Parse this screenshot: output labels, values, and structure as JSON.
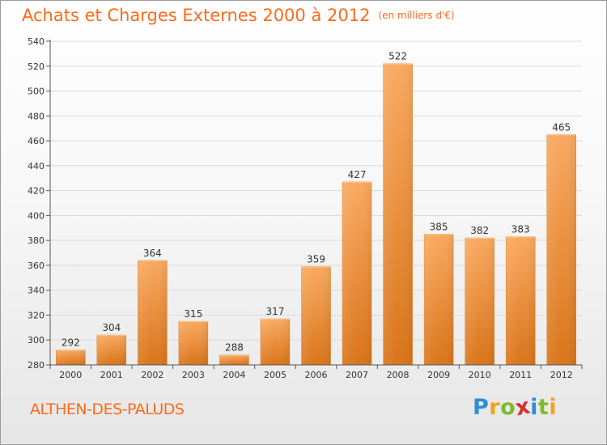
{
  "title": "Achats et Charges Externes 2000 à 2012",
  "unit": "(en milliers d'€)",
  "commune": "ALTHEN-DES-PALUDS",
  "logo": {
    "text": "Proxiti",
    "letters": [
      {
        "char": "P",
        "color": "#2d8fd6"
      },
      {
        "char": "r",
        "color": "#f2a31a"
      },
      {
        "char": "o",
        "color": "#7cbb2a"
      },
      {
        "char": "x",
        "color": "#d72f2f"
      },
      {
        "char": "i",
        "color": "#2d8fd6"
      },
      {
        "char": "t",
        "color": "#7cbb2a"
      },
      {
        "char": "i",
        "color": "#f2a31a"
      }
    ]
  },
  "colors": {
    "title": "#ff6a1a",
    "bar_light": "#f9a960",
    "bar_dark": "#d97419",
    "grid": "#d9d9d9",
    "axis": "#555555"
  },
  "chart_data": {
    "type": "bar",
    "title": "Achats et Charges Externes 2000 à 2012",
    "subtitle": "(en milliers d'€)",
    "xlabel": "",
    "ylabel": "",
    "categories": [
      "2000",
      "2001",
      "2002",
      "2003",
      "2004",
      "2005",
      "2006",
      "2007",
      "2008",
      "2009",
      "2010",
      "2011",
      "2012"
    ],
    "values": [
      292,
      304,
      364,
      315,
      288,
      317,
      359,
      427,
      522,
      385,
      382,
      383,
      465
    ],
    "data_labels": [
      "292",
      "304",
      "364",
      "315",
      "288",
      "317",
      "359",
      "427",
      "522",
      "385",
      "382",
      "383",
      "465"
    ],
    "ylim": [
      280,
      540
    ],
    "yticks": [
      280,
      300,
      320,
      340,
      360,
      380,
      400,
      420,
      440,
      460,
      480,
      500,
      520,
      540
    ],
    "ytick_labels": [
      "280",
      "300",
      "320",
      "340",
      "360",
      "380",
      "400",
      "420",
      "440",
      "460",
      "480",
      "500",
      "520",
      "540"
    ],
    "grid": true,
    "legend": "none"
  }
}
